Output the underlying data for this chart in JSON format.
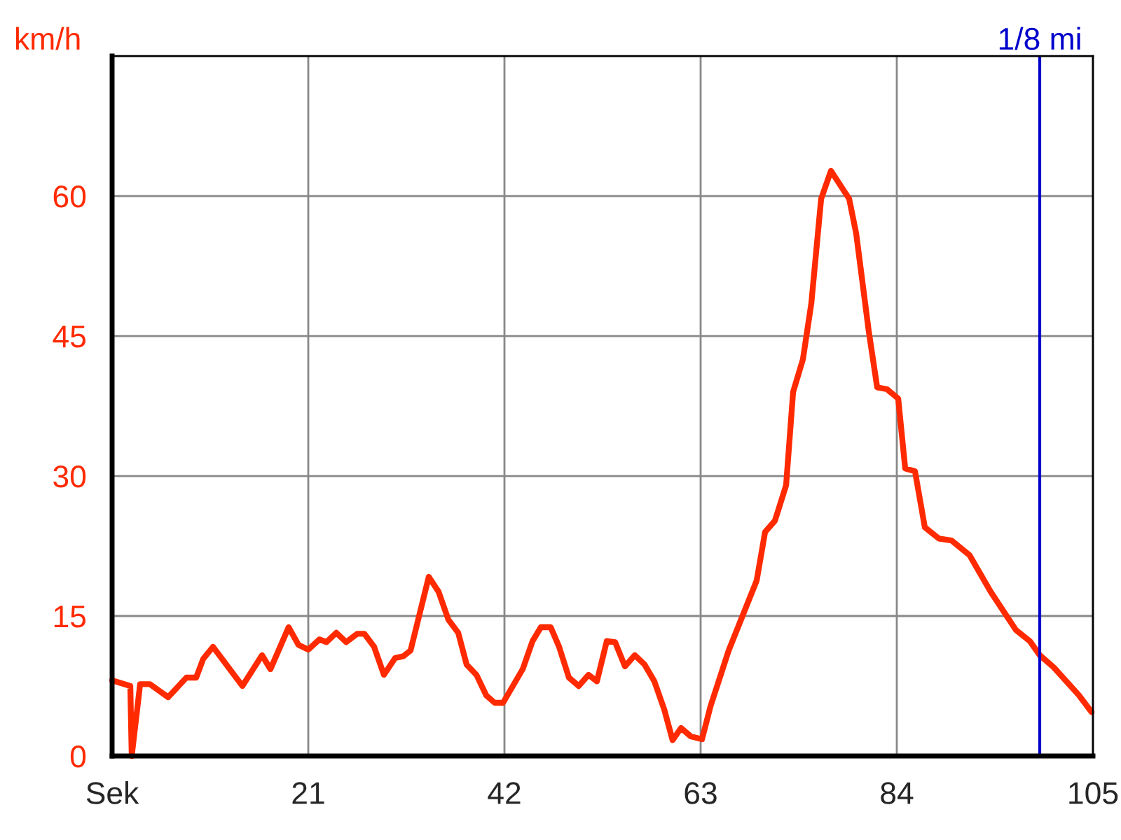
{
  "chart_data": {
    "type": "line",
    "ylabel": "km/h",
    "x": [
      0,
      1.95,
      2.1,
      3,
      4.05,
      6,
      7.95,
      9,
      9.75,
      10.8,
      13.95,
      16.05,
      16.95,
      18.9,
      19.95,
      21,
      22.2,
      22.95,
      24,
      25.05,
      26.25,
      27,
      28.05,
      29.1,
      30.3,
      31.2,
      31.95,
      33.9,
      34.95,
      36,
      37.05,
      37.95,
      39,
      40.05,
      40.95,
      41.85,
      43.95,
      45,
      45.9,
      46.95,
      47.85,
      48.9,
      49.95,
      51,
      51.9,
      52.95,
      53.85,
      54.9,
      55.95,
      57,
      58.05,
      59.1,
      60,
      60.9,
      61.95,
      63.15,
      64.05,
      66,
      69,
      69.9,
      70.95,
      72.15,
      72.9,
      73.95,
      74.85,
      75.9,
      76.95,
      78.9,
      79.65,
      81,
      81.9,
      82.95,
      84.15,
      84.9,
      85.95,
      87,
      88.5,
      89.85,
      91.8,
      94.05,
      96.75,
      98.25,
      99.3,
      100.8,
      103.5,
      104.85
    ],
    "series": [
      {
        "color": "#ff2a00",
        "values": [
          8.1,
          7.5,
          0,
          7.7,
          7.7,
          6.3,
          8.4,
          8.4,
          10.4,
          11.7,
          7.5,
          10.8,
          9.3,
          13.8,
          11.9,
          11.4,
          12.5,
          12.2,
          13.2,
          12.2,
          13.1,
          13.1,
          11.7,
          8.7,
          10.5,
          10.7,
          11.3,
          19.2,
          17.6,
          14.6,
          13.2,
          9.8,
          8.7,
          6.5,
          5.7,
          5.7,
          9.3,
          12.3,
          13.8,
          13.8,
          11.7,
          8.4,
          7.5,
          8.7,
          8.0,
          12.3,
          12.2,
          9.6,
          10.8,
          9.8,
          8.0,
          5.0,
          1.7,
          3.0,
          2.1,
          1.8,
          5.3,
          11.3,
          18.8,
          24.0,
          25.2,
          29.0,
          39.0,
          42.5,
          48.5,
          59.7,
          62.7,
          59.7,
          56.0,
          45.5,
          39.5,
          39.3,
          38.3,
          30.8,
          30.5,
          24.5,
          23.3,
          23.1,
          21.5,
          17.6,
          13.5,
          12.3,
          10.8,
          9.5,
          6.5,
          4.7
        ]
      }
    ],
    "xlim": [
      0,
      105
    ],
    "ylim": [
      0,
      75
    ],
    "xticks": [
      {
        "value": 0,
        "label": "Sek"
      },
      21,
      42,
      63,
      84,
      105
    ],
    "yticks": [
      0,
      15,
      30,
      45,
      60
    ],
    "grid": true,
    "marker": "none",
    "line_style": "solid",
    "ref_lines": [
      {
        "axis": "x",
        "value": 99.3,
        "label": "1/8 mi",
        "color": "#0000cc"
      }
    ]
  }
}
